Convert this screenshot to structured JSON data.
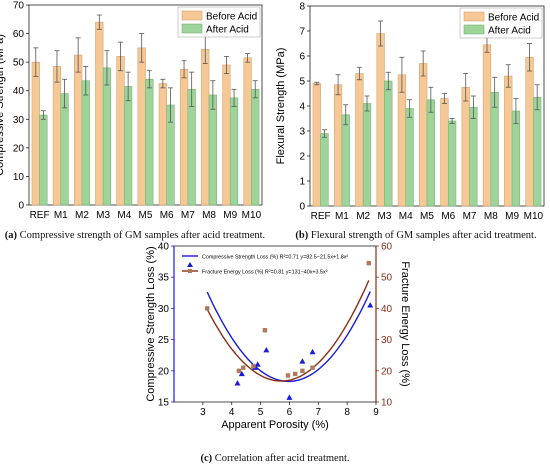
{
  "panels": {
    "a": {
      "tag": "(a)",
      "text": "Compressive strength of GM samples after acid treatment."
    },
    "b": {
      "tag": "(b)",
      "text": "Flexural strength of GM samples after acid treatment."
    },
    "c": {
      "tag": "(c)",
      "text": "Correlation after acid treatment."
    }
  },
  "colors": {
    "before": "#f5c896",
    "after": "#9ed49a",
    "blue": "#1a1adb",
    "brown": "#8b2e14",
    "brown_marker": "#b07a5a"
  },
  "chart_data": [
    {
      "type": "bar",
      "ylabel": "Compressive Strength (MPa)",
      "xlabel": "",
      "ylim": [
        0,
        70
      ],
      "yticks": [
        0,
        10,
        20,
        30,
        40,
        50,
        60,
        70
      ],
      "categories": [
        "REF",
        "M1",
        "M2",
        "M3",
        "M4",
        "M5",
        "M6",
        "M7",
        "M8",
        "M9",
        "M10"
      ],
      "series": [
        {
          "name": "Before Acid",
          "values": [
            50,
            48.5,
            52.5,
            64,
            52,
            55,
            42.5,
            47.5,
            54.5,
            49,
            51.5
          ],
          "errors": [
            5,
            5.5,
            6,
            2.5,
            5,
            5,
            1.5,
            3,
            5,
            3,
            1.5
          ]
        },
        {
          "name": "After Acid",
          "values": [
            31.5,
            39,
            43.5,
            48,
            41.5,
            44,
            35,
            40.5,
            38.5,
            37.5,
            40.5
          ],
          "errors": [
            1.5,
            5,
            5,
            6,
            5,
            3,
            6,
            6,
            5,
            3,
            3
          ]
        }
      ],
      "legend": "top-right"
    },
    {
      "type": "bar",
      "ylabel": "Flexural Strength (MPa)",
      "xlabel": "",
      "ylim": [
        0,
        8
      ],
      "yticks": [
        0,
        1,
        2,
        3,
        4,
        5,
        6,
        7,
        8
      ],
      "categories": [
        "REF",
        "M1",
        "M2",
        "M3",
        "M4",
        "M5",
        "M6",
        "M7",
        "M8",
        "M9",
        "M10"
      ],
      "series": [
        {
          "name": "Before Acid",
          "values": [
            4.9,
            4.85,
            5.3,
            6.9,
            5.25,
            5.7,
            4.3,
            4.75,
            6.45,
            5.2,
            5.95
          ],
          "errors": [
            0.05,
            0.4,
            0.25,
            0.5,
            0.7,
            0.5,
            0.2,
            0.55,
            0.3,
            0.45,
            0.55
          ]
        },
        {
          "name": "After Acid",
          "values": [
            2.9,
            3.65,
            4.1,
            5.0,
            3.9,
            4.25,
            3.4,
            3.95,
            4.55,
            3.8,
            4.35
          ],
          "errors": [
            0.15,
            0.4,
            0.3,
            0.35,
            0.35,
            0.5,
            0.1,
            0.45,
            0.6,
            0.5,
            0.5
          ]
        }
      ],
      "legend": "top-right"
    },
    {
      "type": "scatter",
      "xlabel": "Apparent Porosity (%)",
      "ylabel": "Compressive Strength Loss (%)",
      "y2label": "Fracture Energy Loss (%)",
      "xlim": [
        2,
        9
      ],
      "xticks": [
        3,
        4,
        5,
        6,
        7,
        8,
        9
      ],
      "ylim": [
        15,
        40
      ],
      "yticks": [
        15,
        20,
        25,
        30,
        35,
        40
      ],
      "y2lim": [
        10,
        60
      ],
      "y2ticks": [
        10,
        20,
        30,
        40,
        50,
        60
      ],
      "legend": "top-left",
      "series": [
        {
          "name": "Compressive Strength Loss (%) R²=0.71 y=82.5−21.5x+1.8x²",
          "axis": "left",
          "marker": "triangle",
          "x": [
            4.2,
            4.35,
            4.8,
            4.9,
            5.2,
            6.0,
            6.45,
            6.8,
            8.8
          ],
          "y": [
            18.0,
            19.5,
            20.5,
            21.0,
            23.3,
            15.7,
            21.5,
            23.0,
            30.5
          ],
          "fit": {
            "a": 82.5,
            "b": -21.5,
            "c": 1.8
          }
        },
        {
          "name": "Fracture Energy Loss (%) R²=0.81 y=131−40x+3.5x²",
          "axis": "right",
          "marker": "square",
          "x": [
            3.15,
            4.25,
            4.4,
            4.75,
            5.15,
            5.95,
            6.2,
            6.45,
            6.8,
            8.75
          ],
          "y": [
            40.0,
            20.0,
            21.0,
            21.5,
            33.0,
            18.5,
            19.0,
            20.0,
            21.0,
            54.5
          ],
          "fit": {
            "a": 131,
            "b": -40,
            "c": 3.5
          }
        }
      ]
    }
  ]
}
